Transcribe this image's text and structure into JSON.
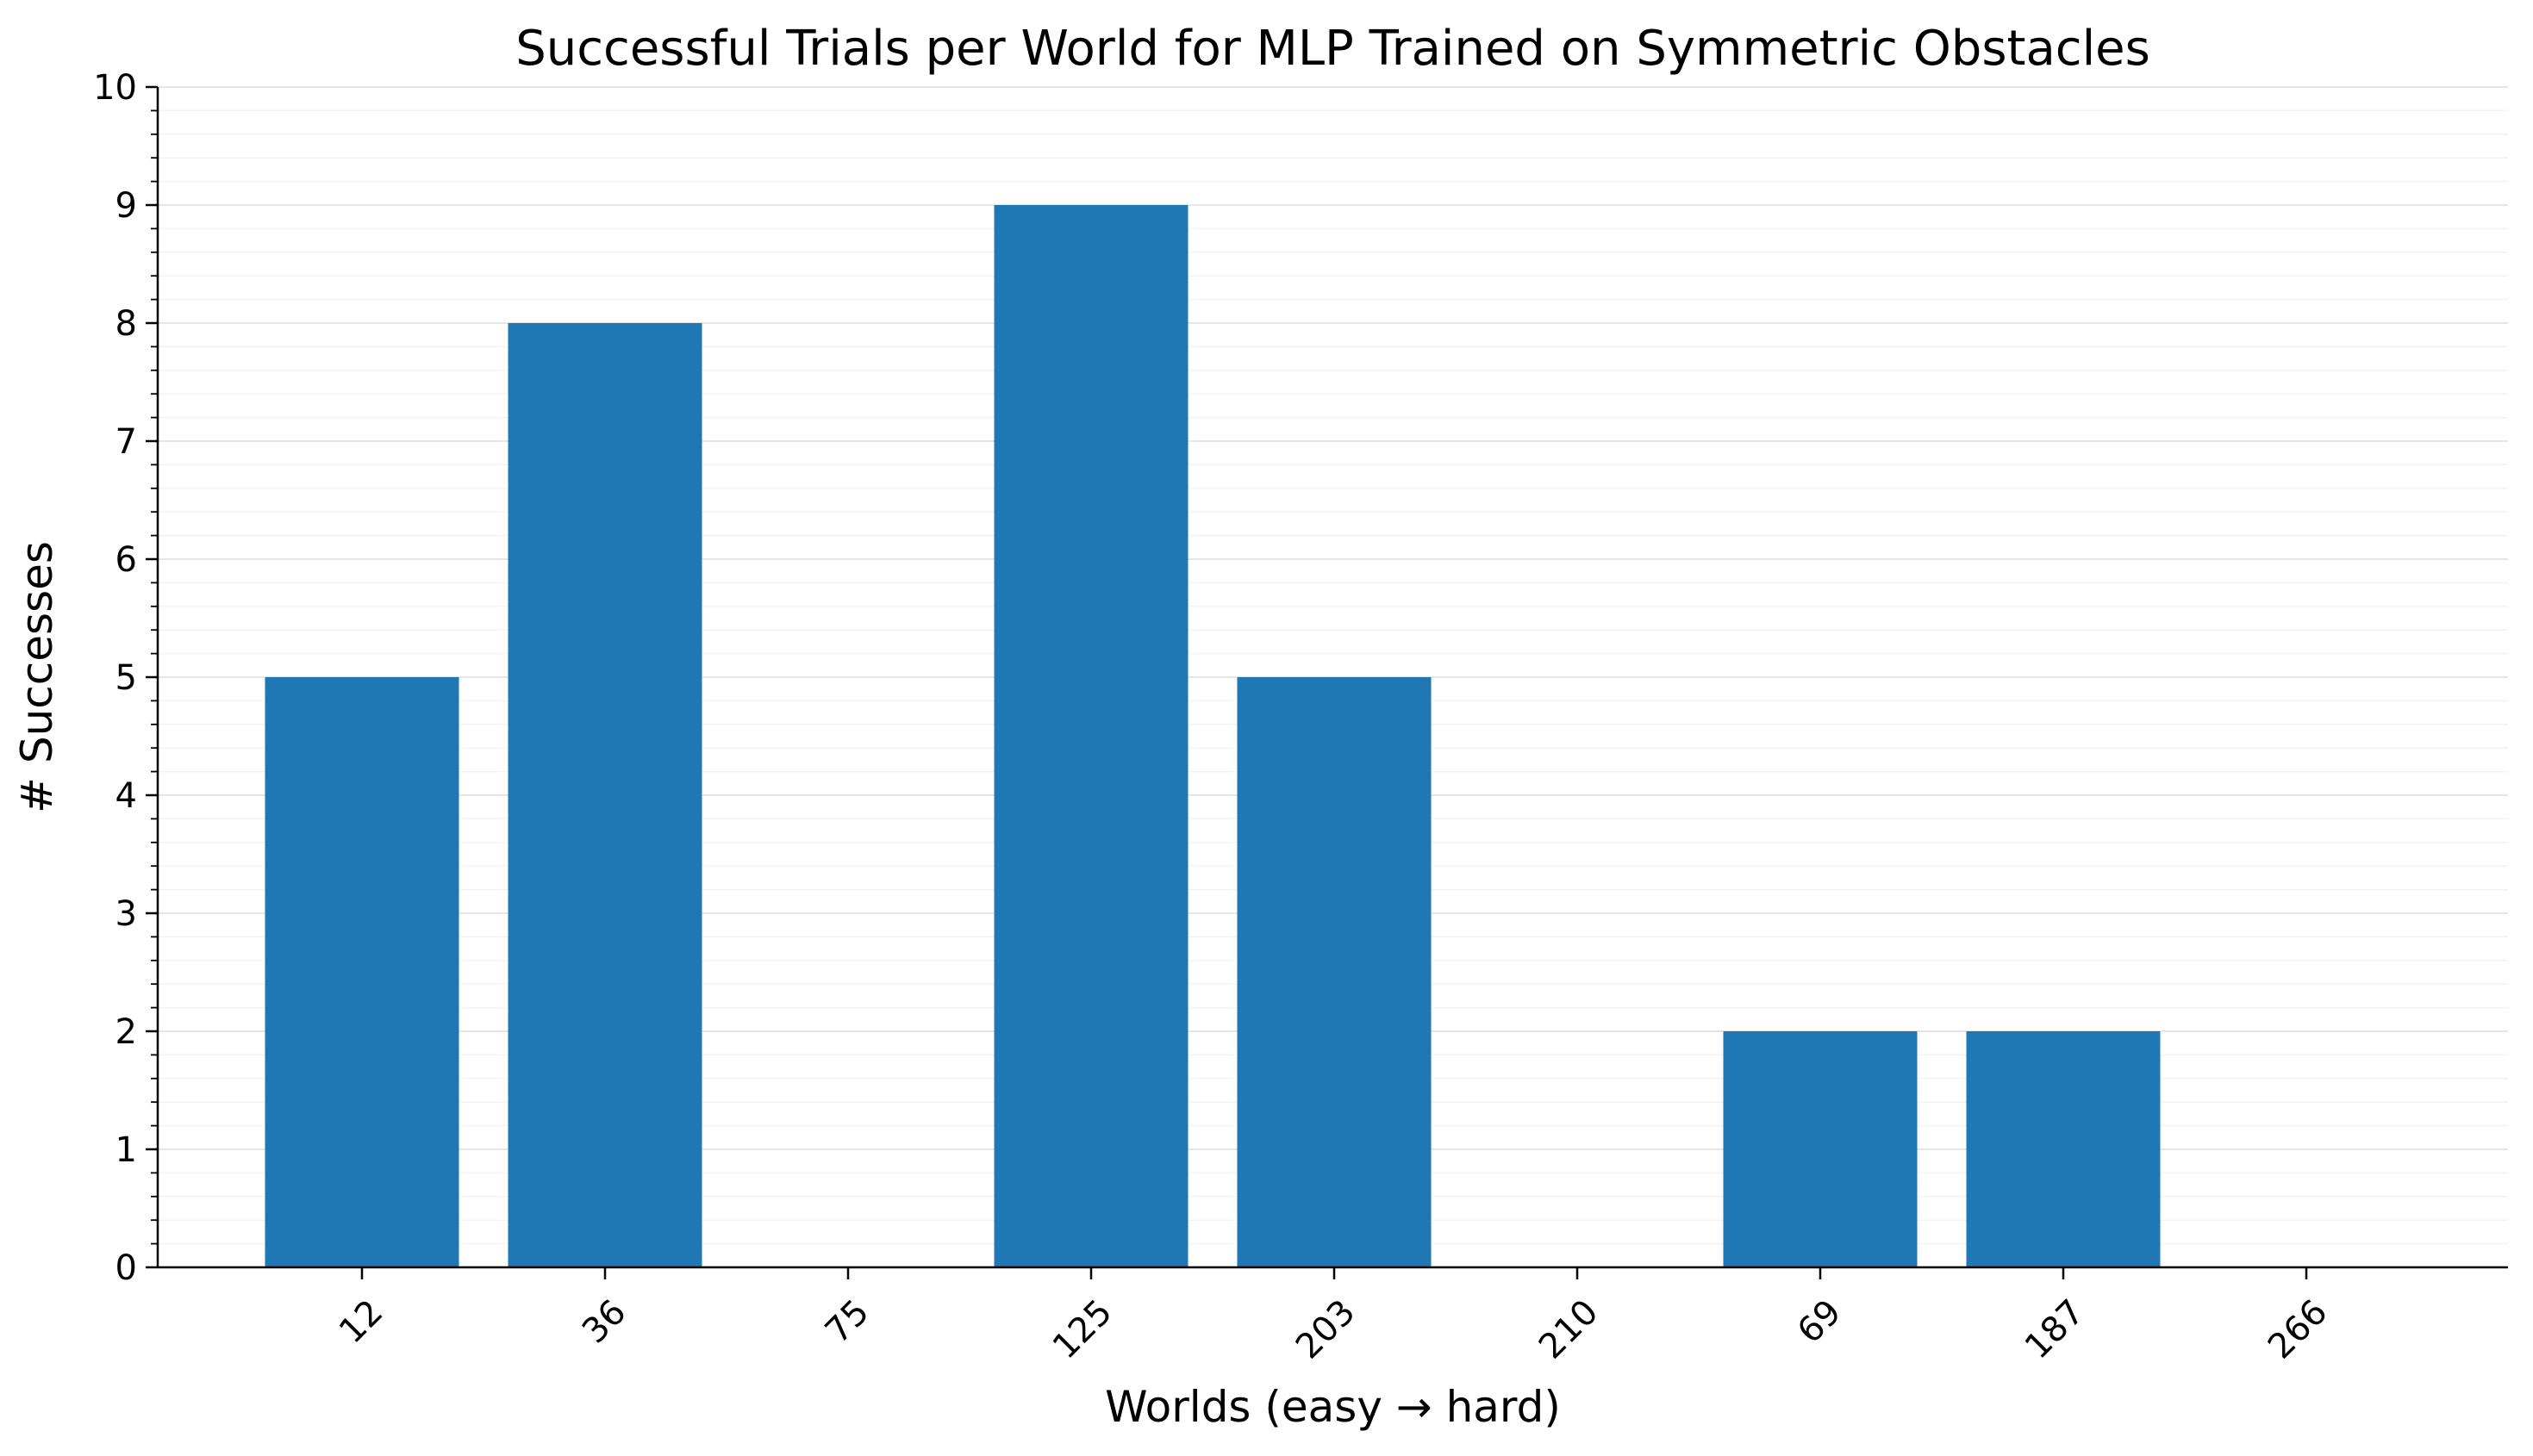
{
  "chart_data": {
    "type": "bar",
    "title": "Successful Trials per World for MLP Trained on Symmetric Obstacles",
    "xlabel": "Worlds (easy → hard)",
    "ylabel": "# Successes",
    "categories": [
      "12",
      "36",
      "75",
      "125",
      "203",
      "210",
      "69",
      "187",
      "266"
    ],
    "values": [
      5,
      8,
      0,
      9,
      5,
      0,
      2,
      2,
      0
    ],
    "ylim": [
      0,
      10
    ],
    "yticks": [
      "0",
      "1",
      "2",
      "3",
      "4",
      "5",
      "6",
      "7",
      "8",
      "9",
      "10"
    ],
    "grid": "horizontal major and minor",
    "bar_color": "#1f77b4",
    "xtick_rotation": "45 degrees"
  }
}
